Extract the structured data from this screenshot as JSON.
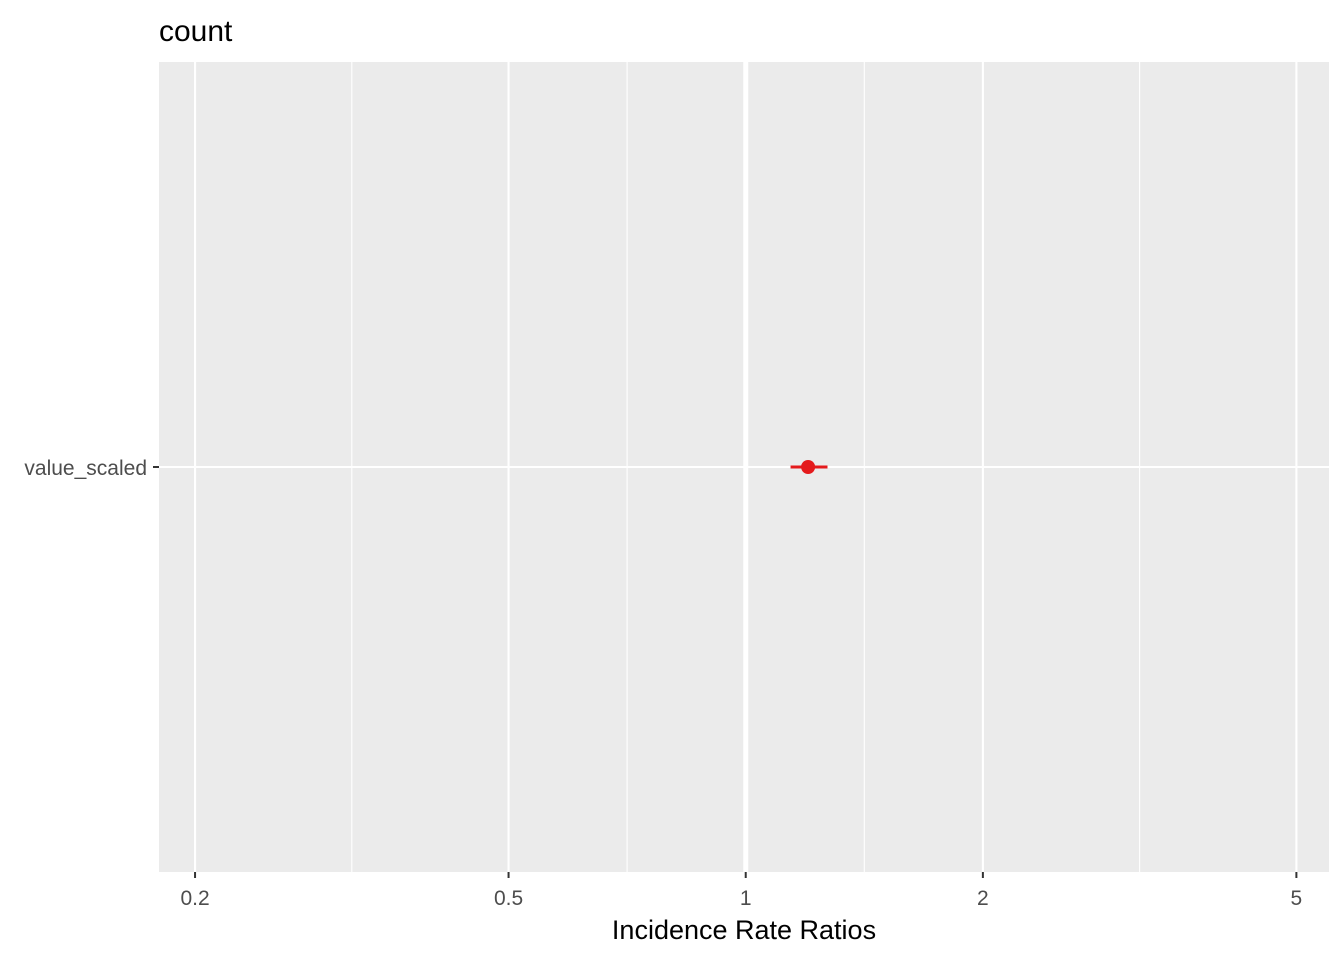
{
  "chart_data": {
    "type": "scatter",
    "title": "count",
    "xlabel": "Incidence Rate Ratios",
    "ylabel": "",
    "x_scale": "log",
    "xlim": [
      0.18,
      5.5
    ],
    "x_ticks": [
      {
        "value": 0.2,
        "label": "0.2"
      },
      {
        "value": 0.5,
        "label": "0.5"
      },
      {
        "value": 1,
        "label": "1"
      },
      {
        "value": 2,
        "label": "2"
      },
      {
        "value": 5,
        "label": "5"
      }
    ],
    "categories": [
      "value_scaled"
    ],
    "points": [
      {
        "term": "value_scaled",
        "estimate": 1.2,
        "conf_low": 1.14,
        "conf_high": 1.27
      }
    ],
    "reference_line": 1,
    "grid": true,
    "legend": "none",
    "colors": {
      "panel": "#ebebeb",
      "grid": "#ffffff",
      "point": "#e41a1c"
    }
  }
}
